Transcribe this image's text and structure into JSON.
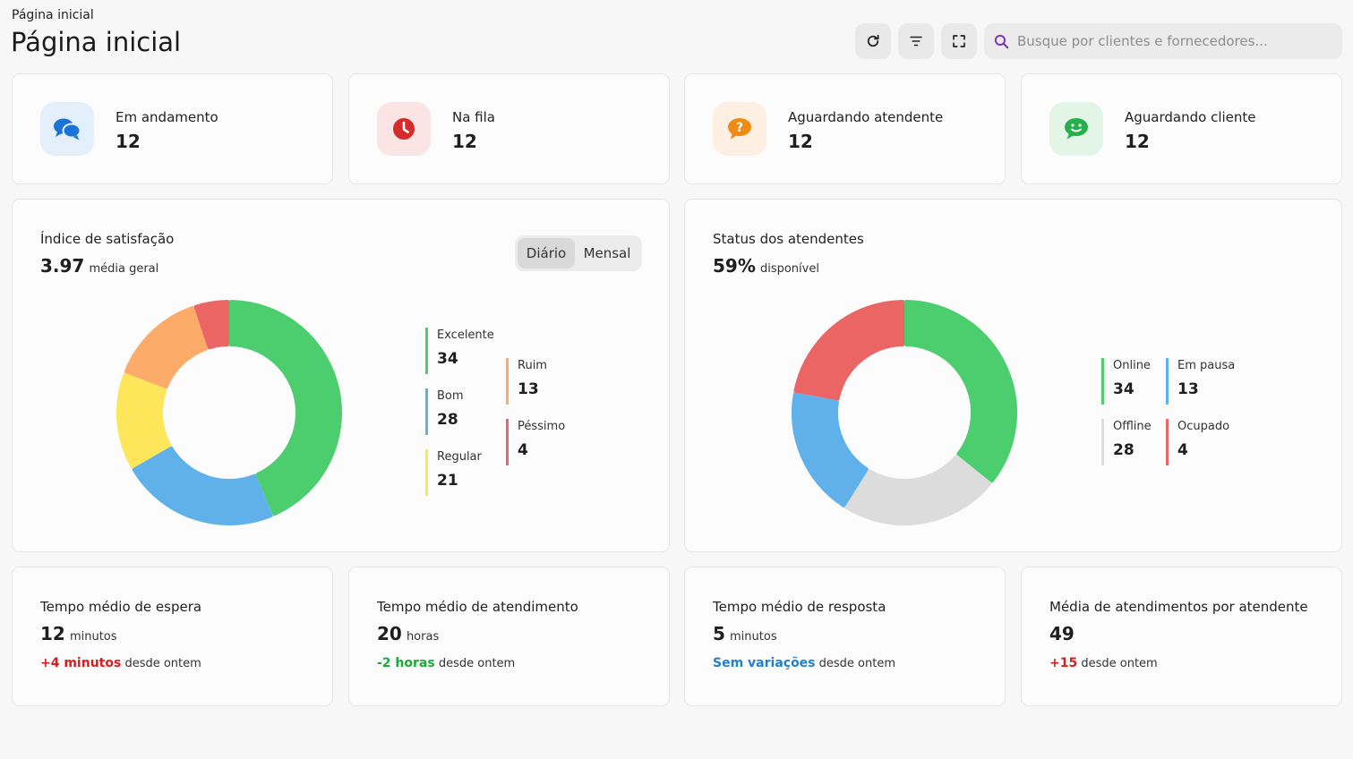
{
  "header": {
    "breadcrumb": "Página inicial",
    "title": "Página inicial",
    "search_placeholder": "Busque por clientes e fornecedores..."
  },
  "icons": {
    "refresh": "refresh-icon",
    "filter": "filter-icon",
    "fullscreen": "fullscreen-icon",
    "search": "search-icon"
  },
  "stats": [
    {
      "label": "Em andamento",
      "value": "12",
      "icon": "chat-bubbles-icon",
      "color": "#1a73d9",
      "bg": "#e3f0fb"
    },
    {
      "label": "Na fila",
      "value": "12",
      "icon": "clock-icon",
      "color": "#d62b2b",
      "bg": "#fbe4e4"
    },
    {
      "label": "Aguardando atendente",
      "value": "12",
      "icon": "question-bubble-icon",
      "color": "#f08a12",
      "bg": "#fdf0e2"
    },
    {
      "label": "Aguardando cliente",
      "value": "12",
      "icon": "smile-bubble-icon",
      "color": "#25b04c",
      "bg": "#e2f5e7"
    }
  ],
  "satisfaction": {
    "title": "Índice de satisfação",
    "value": "3.97",
    "unit": "média geral",
    "toggle": {
      "active": "Diário",
      "inactive": "Mensal"
    }
  },
  "attendants": {
    "title": "Status dos atendentes",
    "value": "59%",
    "unit": "disponível"
  },
  "chart_data": [
    {
      "type": "pie",
      "title": "Índice de satisfação",
      "series": [
        {
          "name": "Excelente",
          "value": 34,
          "color": "#4cce6f"
        },
        {
          "name": "Bom",
          "value": 28,
          "color": "#60b1ea"
        },
        {
          "name": "Regular",
          "value": 21,
          "color": "#fde65a"
        },
        {
          "name": "Ruim",
          "value": 13,
          "color": "#fdab68"
        },
        {
          "name": "Péssimo",
          "value": 4,
          "color": "#ec6565"
        }
      ],
      "donut_values": [
        34,
        18,
        11,
        11,
        4
      ]
    },
    {
      "type": "pie",
      "title": "Status dos atendentes",
      "series": [
        {
          "name": "Online",
          "value": 34,
          "color": "#4cce6f"
        },
        {
          "name": "Offline",
          "value": 28,
          "color": "#dcdcdc"
        },
        {
          "name": "Em pausa",
          "value": 13,
          "color": "#60b1ea"
        },
        {
          "name": "Ocupado",
          "value": 4,
          "color": "#ec6565"
        }
      ],
      "donut_values": [
        34,
        22,
        18,
        21
      ]
    }
  ],
  "kpis": [
    {
      "title": "Tempo médio de espera",
      "value": "12",
      "unit": "minutos",
      "delta": "+4 minutos",
      "delta_color": "#d91d1d",
      "suffix": "desde ontem"
    },
    {
      "title": "Tempo médio de atendimento",
      "value": "20",
      "unit": "horas",
      "delta": "-2 horas",
      "delta_color": "#1ea83a",
      "suffix": "desde ontem"
    },
    {
      "title": "Tempo médio de resposta",
      "value": "5",
      "unit": "minutos",
      "delta": "Sem variações",
      "delta_color": "#1f7fd1",
      "suffix": "desde ontem"
    },
    {
      "title": "Média de atendimentos por atendente",
      "value": "49",
      "unit": "",
      "delta": "+15",
      "delta_color": "#d91d1d",
      "suffix": "desde ontem"
    }
  ]
}
